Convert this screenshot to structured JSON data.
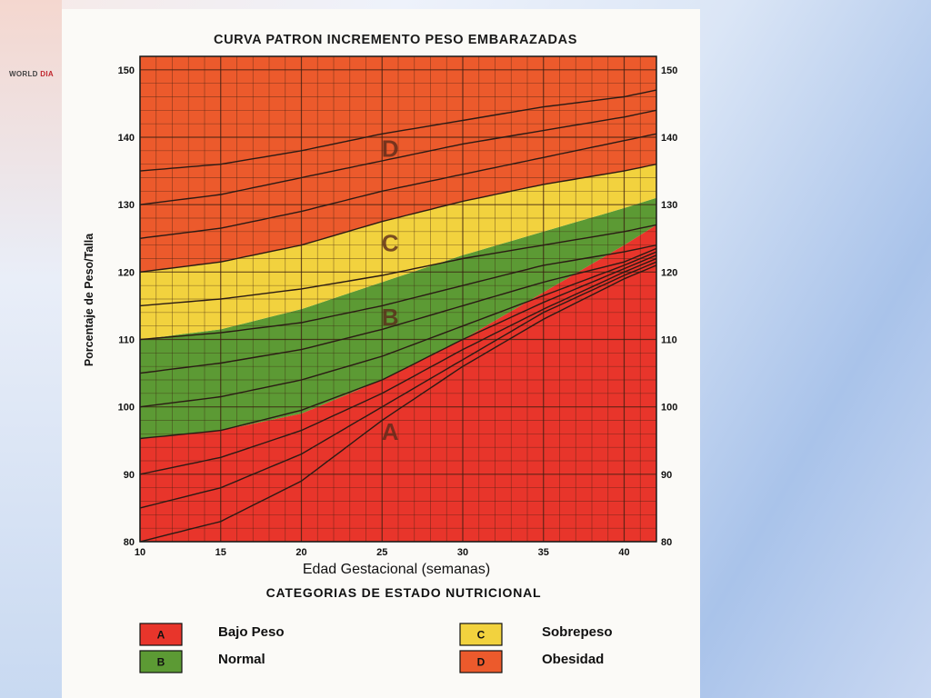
{
  "logo": {
    "part1": "WORLD ",
    "part2": "DIA"
  },
  "chart_data": {
    "type": "line",
    "title": "CURVA PATRON INCREMENTO PESO EMBARAZADAS",
    "xlabel": "Edad Gestacional (semanas)",
    "ylabel": "Porcentaje de Peso/Talla",
    "xlim": [
      10,
      42
    ],
    "ylim": [
      80,
      152
    ],
    "x_ticks": [
      10,
      15,
      20,
      25,
      30,
      35,
      40
    ],
    "y_ticks": [
      80,
      90,
      100,
      110,
      120,
      130,
      140,
      150
    ],
    "grid": true,
    "bands": [
      {
        "code": "A",
        "label": "Bajo Peso",
        "color": "#e8352b",
        "lower": [
          [
            10,
            80
          ],
          [
            42,
            80
          ]
        ],
        "upper": [
          [
            10,
            95.3
          ],
          [
            15,
            96.5
          ],
          [
            20,
            99
          ],
          [
            25,
            104
          ],
          [
            30,
            110
          ],
          [
            35,
            117
          ],
          [
            40,
            124
          ],
          [
            42,
            127
          ]
        ]
      },
      {
        "code": "B",
        "label": "Normal",
        "color": "#5c9a34",
        "lower": [
          [
            10,
            95.3
          ],
          [
            15,
            96.5
          ],
          [
            20,
            99
          ],
          [
            25,
            104
          ],
          [
            30,
            110
          ],
          [
            35,
            117
          ],
          [
            40,
            124
          ],
          [
            42,
            127
          ]
        ],
        "upper": [
          [
            10,
            110
          ],
          [
            15,
            111.5
          ],
          [
            20,
            114.5
          ],
          [
            25,
            118.5
          ],
          [
            30,
            122.5
          ],
          [
            35,
            126
          ],
          [
            40,
            129.5
          ],
          [
            42,
            131
          ]
        ]
      },
      {
        "code": "C",
        "label": "Sobrepeso",
        "color": "#f2d23e",
        "lower": [
          [
            10,
            110
          ],
          [
            15,
            111.5
          ],
          [
            20,
            114.5
          ],
          [
            25,
            118.5
          ],
          [
            30,
            122.5
          ],
          [
            35,
            126
          ],
          [
            40,
            129.5
          ],
          [
            42,
            131
          ]
        ],
        "upper": [
          [
            10,
            120
          ],
          [
            15,
            121.5
          ],
          [
            20,
            124
          ],
          [
            25,
            127.5
          ],
          [
            30,
            130.5
          ],
          [
            35,
            133
          ],
          [
            40,
            135
          ],
          [
            42,
            136
          ]
        ]
      },
      {
        "code": "D",
        "label": "Obesidad",
        "color": "#ec5a2c",
        "lower": [
          [
            10,
            120
          ],
          [
            15,
            121.5
          ],
          [
            20,
            124
          ],
          [
            25,
            127.5
          ],
          [
            30,
            130.5
          ],
          [
            35,
            133
          ],
          [
            40,
            135
          ],
          [
            42,
            136
          ]
        ],
        "upper": [
          [
            10,
            152
          ],
          [
            42,
            152
          ]
        ]
      }
    ],
    "curves": [
      [
        [
          10,
          80
        ],
        [
          15,
          83
        ],
        [
          20,
          89
        ],
        [
          25,
          98
        ],
        [
          30,
          106
        ],
        [
          35,
          113
        ],
        [
          40,
          119
        ],
        [
          42,
          121
        ]
      ],
      [
        [
          10,
          85
        ],
        [
          15,
          88
        ],
        [
          20,
          93
        ],
        [
          25,
          100
        ],
        [
          30,
          107
        ],
        [
          35,
          114
        ],
        [
          40,
          119.5
        ],
        [
          42,
          121.5
        ]
      ],
      [
        [
          10,
          90
        ],
        [
          15,
          92.5
        ],
        [
          20,
          96.5
        ],
        [
          25,
          102
        ],
        [
          30,
          108.5
        ],
        [
          35,
          114.5
        ],
        [
          40,
          120
        ],
        [
          42,
          122
        ]
      ],
      [
        [
          10,
          95.3
        ],
        [
          15,
          96.5
        ],
        [
          20,
          99.5
        ],
        [
          25,
          104
        ],
        [
          30,
          110
        ],
        [
          35,
          115.5
        ],
        [
          40,
          120.5
        ],
        [
          42,
          122.5
        ]
      ],
      [
        [
          10,
          100
        ],
        [
          15,
          101.5
        ],
        [
          20,
          104
        ],
        [
          25,
          107.5
        ],
        [
          30,
          112
        ],
        [
          35,
          116.5
        ],
        [
          40,
          121
        ],
        [
          42,
          123
        ]
      ],
      [
        [
          10,
          105
        ],
        [
          15,
          106.5
        ],
        [
          20,
          108.5
        ],
        [
          25,
          111.5
        ],
        [
          30,
          115
        ],
        [
          35,
          118.5
        ],
        [
          40,
          121.5
        ],
        [
          42,
          123.5
        ]
      ],
      [
        [
          10,
          110
        ],
        [
          15,
          111
        ],
        [
          20,
          112.5
        ],
        [
          25,
          115
        ],
        [
          30,
          118
        ],
        [
          35,
          121
        ],
        [
          40,
          123
        ],
        [
          42,
          124
        ]
      ],
      [
        [
          10,
          115
        ],
        [
          15,
          116
        ],
        [
          20,
          117.5
        ],
        [
          25,
          119.5
        ],
        [
          30,
          122
        ],
        [
          35,
          124
        ],
        [
          40,
          126
        ],
        [
          42,
          127
        ]
      ],
      [
        [
          10,
          120
        ],
        [
          15,
          121.5
        ],
        [
          20,
          124
        ],
        [
          25,
          127.5
        ],
        [
          30,
          130.5
        ],
        [
          35,
          133
        ],
        [
          40,
          135
        ],
        [
          42,
          136
        ]
      ],
      [
        [
          10,
          125
        ],
        [
          15,
          126.5
        ],
        [
          20,
          129
        ],
        [
          25,
          132
        ],
        [
          30,
          134.5
        ],
        [
          35,
          137
        ],
        [
          40,
          139.5
        ],
        [
          42,
          140.5
        ]
      ],
      [
        [
          10,
          130
        ],
        [
          15,
          131.5
        ],
        [
          20,
          134
        ],
        [
          25,
          136.5
        ],
        [
          30,
          139
        ],
        [
          35,
          141
        ],
        [
          40,
          143
        ],
        [
          42,
          144
        ]
      ],
      [
        [
          10,
          135
        ],
        [
          15,
          136
        ],
        [
          20,
          138
        ],
        [
          25,
          140.5
        ],
        [
          30,
          142.5
        ],
        [
          35,
          144.5
        ],
        [
          40,
          146
        ],
        [
          42,
          147
        ]
      ]
    ],
    "zone_labels": [
      {
        "text": "D",
        "x": 25.5,
        "y": 138
      },
      {
        "text": "C",
        "x": 25.5,
        "y": 124
      },
      {
        "text": "B",
        "x": 25.5,
        "y": 113
      },
      {
        "text": "A",
        "x": 25.5,
        "y": 96
      }
    ]
  },
  "legend": {
    "title": "CATEGORIAS DE ESTADO NUTRICIONAL",
    "items": [
      {
        "code": "A",
        "label": "Bajo Peso",
        "color": "#e8352b"
      },
      {
        "code": "B",
        "label": "Normal",
        "color": "#5c9a34"
      },
      {
        "code": "C",
        "label": "Sobrepeso",
        "color": "#f2d23e"
      },
      {
        "code": "D",
        "label": "Obesidad",
        "color": "#ec5a2c"
      }
    ]
  }
}
